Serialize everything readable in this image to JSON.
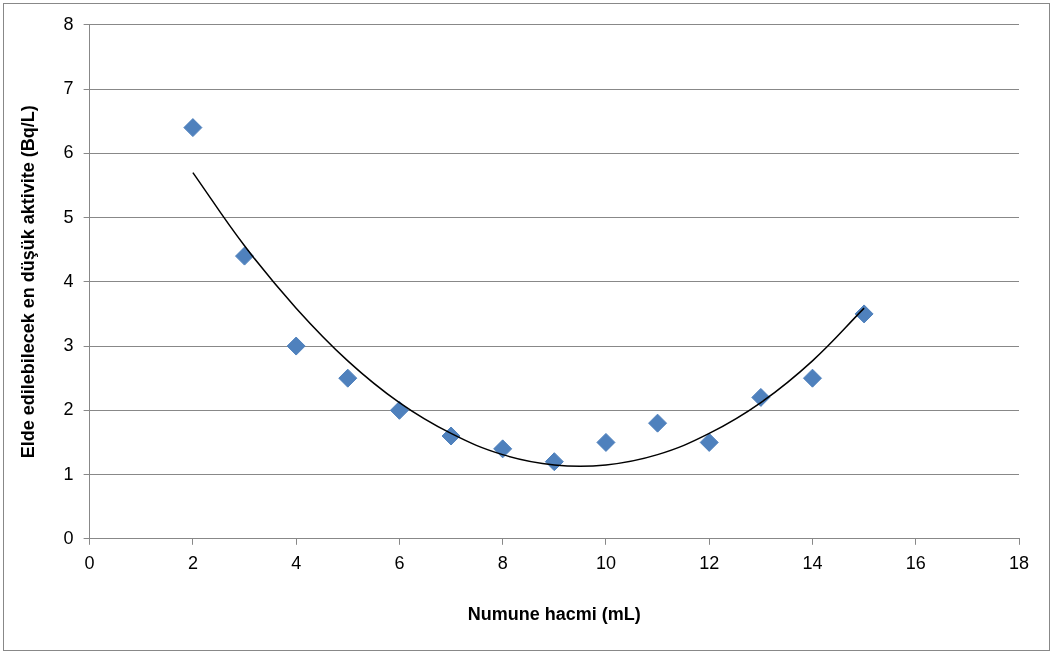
{
  "chart_data": {
    "type": "scatter",
    "xlabel": "Numune hacmi (mL)",
    "ylabel": "Elde edilebilecek en düşük aktivite (Bq/L)",
    "xlim": [
      0,
      18
    ],
    "xticks": [
      0,
      2,
      4,
      6,
      8,
      10,
      12,
      14,
      16,
      18
    ],
    "ylim": [
      0,
      8
    ],
    "yticks": [
      0,
      1,
      2,
      3,
      4,
      5,
      6,
      7,
      8
    ],
    "grid": "y",
    "legend": false,
    "marker": "diamond",
    "series": [
      {
        "color": "#4f81bd",
        "x": [
          2,
          3,
          4,
          5,
          6,
          7,
          8,
          9,
          10,
          11,
          12,
          13,
          14,
          15
        ],
        "values": [
          6.4,
          4.4,
          3.0,
          2.5,
          2.0,
          1.6,
          1.4,
          1.2,
          1.5,
          1.8,
          1.5,
          2.2,
          2.5,
          3.5
        ]
      },
      {
        "type": "line",
        "color": "#000000",
        "marker": "none",
        "line_style": "solid",
        "x": [
          2,
          3,
          4,
          5,
          6,
          7,
          8,
          9,
          10,
          11,
          12,
          13,
          14,
          15
        ],
        "values": [
          5.7,
          4.56,
          3.59,
          2.77,
          2.12,
          1.64,
          1.31,
          1.15,
          1.15,
          1.31,
          1.64,
          2.12,
          2.77,
          3.59
        ]
      }
    ]
  }
}
